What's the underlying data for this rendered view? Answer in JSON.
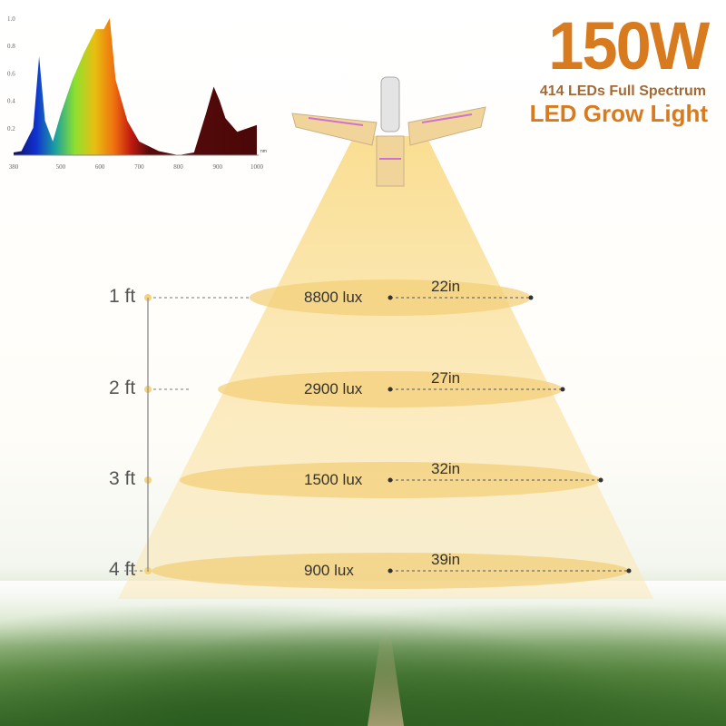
{
  "header": {
    "wattage": "150W",
    "subtitle": "414 LEDs Full Spectrum",
    "product": "LED Grow Light"
  },
  "levels": [
    {
      "height": "1 ft",
      "lux": "8800 lux",
      "diameter": "22in"
    },
    {
      "height": "2 ft",
      "lux": "2900 lux",
      "diameter": "27in"
    },
    {
      "height": "3 ft",
      "lux": "1500 lux",
      "diameter": "32in"
    },
    {
      "height": "4 ft",
      "lux": "900 lux",
      "diameter": "39in"
    }
  ],
  "colors": {
    "accent": "#d87a1e",
    "light": "#f7d98a"
  },
  "chart_data": {
    "type": "area",
    "title": "",
    "xlabel": "nm",
    "ylabel": "",
    "xlim": [
      380,
      1000
    ],
    "ylim": [
      0,
      1.0
    ],
    "x_ticks": [
      "380",
      "500",
      "600",
      "700",
      "800",
      "900",
      "1000"
    ],
    "y_ticks": [
      "1.0",
      "0.8",
      "0.6",
      "0.4",
      "0.2"
    ],
    "grid": false,
    "x": [
      380,
      400,
      430,
      445,
      460,
      480,
      500,
      530,
      560,
      590,
      610,
      625,
      640,
      670,
      700,
      750,
      800,
      840,
      870,
      890,
      905,
      920,
      950,
      980,
      1000
    ],
    "y": [
      0.02,
      0.03,
      0.2,
      0.72,
      0.25,
      0.1,
      0.3,
      0.55,
      0.75,
      0.92,
      0.92,
      1.0,
      0.55,
      0.25,
      0.1,
      0.03,
      0.0,
      0.02,
      0.3,
      0.5,
      0.4,
      0.27,
      0.17,
      0.2,
      0.22
    ]
  }
}
